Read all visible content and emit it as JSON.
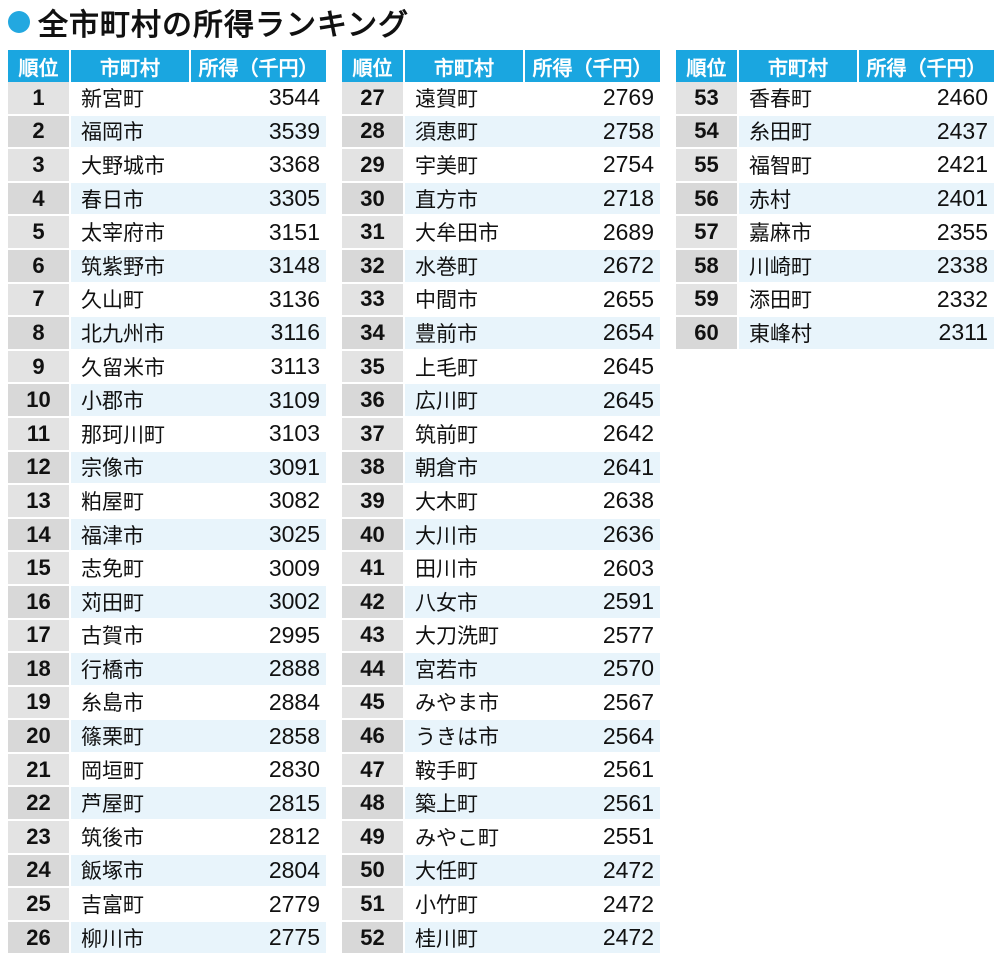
{
  "title": "全市町村の所得ランキング",
  "headers": {
    "rank": "順位",
    "name": "市町村",
    "income": "所得（千円）"
  },
  "columns": [
    [
      {
        "rank": "1",
        "name": "新宮町",
        "income": "3544"
      },
      {
        "rank": "2",
        "name": "福岡市",
        "income": "3539"
      },
      {
        "rank": "3",
        "name": "大野城市",
        "income": "3368"
      },
      {
        "rank": "4",
        "name": "春日市",
        "income": "3305"
      },
      {
        "rank": "5",
        "name": "太宰府市",
        "income": "3151"
      },
      {
        "rank": "6",
        "name": "筑紫野市",
        "income": "3148"
      },
      {
        "rank": "7",
        "name": "久山町",
        "income": "3136"
      },
      {
        "rank": "8",
        "name": "北九州市",
        "income": "3116"
      },
      {
        "rank": "9",
        "name": "久留米市",
        "income": "3113"
      },
      {
        "rank": "10",
        "name": "小郡市",
        "income": "3109"
      },
      {
        "rank": "11",
        "name": "那珂川町",
        "income": "3103"
      },
      {
        "rank": "12",
        "name": "宗像市",
        "income": "3091"
      },
      {
        "rank": "13",
        "name": "粕屋町",
        "income": "3082"
      },
      {
        "rank": "14",
        "name": "福津市",
        "income": "3025"
      },
      {
        "rank": "15",
        "name": "志免町",
        "income": "3009"
      },
      {
        "rank": "16",
        "name": "苅田町",
        "income": "3002"
      },
      {
        "rank": "17",
        "name": "古賀市",
        "income": "2995"
      },
      {
        "rank": "18",
        "name": "行橋市",
        "income": "2888"
      },
      {
        "rank": "19",
        "name": "糸島市",
        "income": "2884"
      },
      {
        "rank": "20",
        "name": "篠栗町",
        "income": "2858"
      },
      {
        "rank": "21",
        "name": "岡垣町",
        "income": "2830"
      },
      {
        "rank": "22",
        "name": "芦屋町",
        "income": "2815"
      },
      {
        "rank": "23",
        "name": "筑後市",
        "income": "2812"
      },
      {
        "rank": "24",
        "name": "飯塚市",
        "income": "2804"
      },
      {
        "rank": "25",
        "name": "吉富町",
        "income": "2779"
      },
      {
        "rank": "26",
        "name": "柳川市",
        "income": "2775"
      }
    ],
    [
      {
        "rank": "27",
        "name": "遠賀町",
        "income": "2769"
      },
      {
        "rank": "28",
        "name": "須恵町",
        "income": "2758"
      },
      {
        "rank": "29",
        "name": "宇美町",
        "income": "2754"
      },
      {
        "rank": "30",
        "name": "直方市",
        "income": "2718"
      },
      {
        "rank": "31",
        "name": "大牟田市",
        "income": "2689"
      },
      {
        "rank": "32",
        "name": "水巻町",
        "income": "2672"
      },
      {
        "rank": "33",
        "name": "中間市",
        "income": "2655"
      },
      {
        "rank": "34",
        "name": "豊前市",
        "income": "2654"
      },
      {
        "rank": "35",
        "name": "上毛町",
        "income": "2645"
      },
      {
        "rank": "36",
        "name": "広川町",
        "income": "2645"
      },
      {
        "rank": "37",
        "name": "筑前町",
        "income": "2642"
      },
      {
        "rank": "38",
        "name": "朝倉市",
        "income": "2641"
      },
      {
        "rank": "39",
        "name": "大木町",
        "income": "2638"
      },
      {
        "rank": "40",
        "name": "大川市",
        "income": "2636"
      },
      {
        "rank": "41",
        "name": "田川市",
        "income": "2603"
      },
      {
        "rank": "42",
        "name": "八女市",
        "income": "2591"
      },
      {
        "rank": "43",
        "name": "大刀洗町",
        "income": "2577"
      },
      {
        "rank": "44",
        "name": "宮若市",
        "income": "2570"
      },
      {
        "rank": "45",
        "name": "みやま市",
        "income": "2567"
      },
      {
        "rank": "46",
        "name": "うきは市",
        "income": "2564"
      },
      {
        "rank": "47",
        "name": "鞍手町",
        "income": "2561"
      },
      {
        "rank": "48",
        "name": "築上町",
        "income": "2561"
      },
      {
        "rank": "49",
        "name": "みやこ町",
        "income": "2551"
      },
      {
        "rank": "50",
        "name": "大任町",
        "income": "2472"
      },
      {
        "rank": "51",
        "name": "小竹町",
        "income": "2472"
      },
      {
        "rank": "52",
        "name": "桂川町",
        "income": "2472"
      }
    ],
    [
      {
        "rank": "53",
        "name": "香春町",
        "income": "2460"
      },
      {
        "rank": "54",
        "name": "糸田町",
        "income": "2437"
      },
      {
        "rank": "55",
        "name": "福智町",
        "income": "2421"
      },
      {
        "rank": "56",
        "name": "赤村",
        "income": "2401"
      },
      {
        "rank": "57",
        "name": "嘉麻市",
        "income": "2355"
      },
      {
        "rank": "58",
        "name": "川崎町",
        "income": "2338"
      },
      {
        "rank": "59",
        "name": "添田町",
        "income": "2332"
      },
      {
        "rank": "60",
        "name": "東峰村",
        "income": "2311"
      }
    ]
  ]
}
